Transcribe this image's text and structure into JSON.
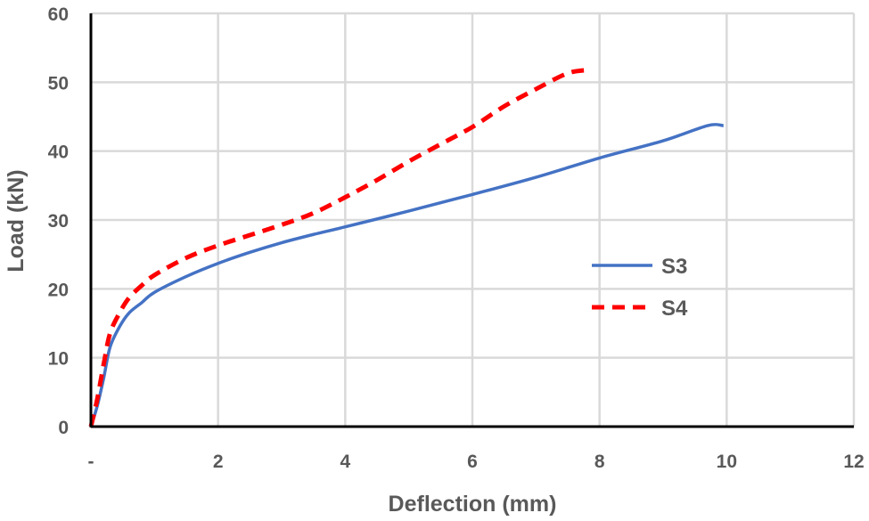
{
  "chart_data": {
    "type": "line",
    "xlabel": "Deflection (mm)",
    "ylabel": "Load (kN)",
    "xlim": [
      0,
      12
    ],
    "ylim": [
      0,
      60
    ],
    "x_ticks": [
      {
        "value": 0,
        "label": "-"
      },
      {
        "value": 2,
        "label": "2"
      },
      {
        "value": 4,
        "label": "4"
      },
      {
        "value": 6,
        "label": "6"
      },
      {
        "value": 8,
        "label": "8"
      },
      {
        "value": 10,
        "label": "10"
      },
      {
        "value": 12,
        "label": "12"
      }
    ],
    "y_ticks": [
      {
        "value": 0,
        "label": "0"
      },
      {
        "value": 10,
        "label": "10"
      },
      {
        "value": 20,
        "label": "20"
      },
      {
        "value": 30,
        "label": "30"
      },
      {
        "value": 40,
        "label": "40"
      },
      {
        "value": 50,
        "label": "50"
      },
      {
        "value": 60,
        "label": "60"
      }
    ],
    "grid": true,
    "legend_position": "right",
    "series": [
      {
        "name": "S3",
        "color": "#4472c4",
        "style": "solid",
        "points": [
          [
            0,
            0
          ],
          [
            0.1,
            3
          ],
          [
            0.2,
            7
          ],
          [
            0.3,
            11.5
          ],
          [
            0.45,
            14.5
          ],
          [
            0.6,
            16.5
          ],
          [
            0.8,
            18
          ],
          [
            1.0,
            19.5
          ],
          [
            1.5,
            21.8
          ],
          [
            2.0,
            23.7
          ],
          [
            2.5,
            25.3
          ],
          [
            3.0,
            26.7
          ],
          [
            3.5,
            27.9
          ],
          [
            4.0,
            29
          ],
          [
            5.0,
            31.3
          ],
          [
            6.0,
            33.7
          ],
          [
            7.0,
            36.2
          ],
          [
            8.0,
            39
          ],
          [
            9.0,
            41.5
          ],
          [
            9.7,
            43.7
          ],
          [
            9.95,
            43.7
          ]
        ]
      },
      {
        "name": "S4",
        "color": "#ff0000",
        "style": "dashed",
        "points": [
          [
            0,
            0
          ],
          [
            0.1,
            4
          ],
          [
            0.2,
            9
          ],
          [
            0.3,
            13.5
          ],
          [
            0.45,
            16.5
          ],
          [
            0.6,
            18.7
          ],
          [
            0.8,
            20.5
          ],
          [
            1.0,
            22
          ],
          [
            1.5,
            24.5
          ],
          [
            2.0,
            26.3
          ],
          [
            2.5,
            27.8
          ],
          [
            3.0,
            29.3
          ],
          [
            3.5,
            31
          ],
          [
            4.0,
            33.3
          ],
          [
            4.5,
            35.8
          ],
          [
            5.0,
            38.5
          ],
          [
            5.5,
            41
          ],
          [
            6.0,
            43.5
          ],
          [
            6.5,
            46.5
          ],
          [
            7.0,
            49
          ],
          [
            7.5,
            51.3
          ],
          [
            7.85,
            51.8
          ]
        ]
      }
    ]
  }
}
